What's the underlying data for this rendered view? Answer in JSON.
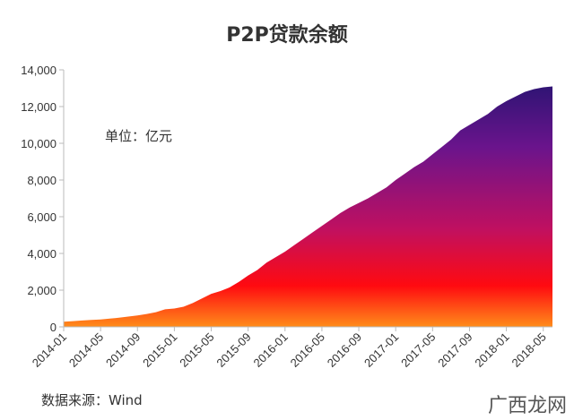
{
  "chart_data": {
    "type": "area",
    "title": "P2P贷款余额",
    "unit_label": "单位：亿元",
    "ylim": [
      0,
      14000
    ],
    "y_ticks": [
      "0",
      "2,000",
      "4,000",
      "6,000",
      "8,000",
      "10,000",
      "12,000",
      "14,000"
    ],
    "x_ticks": [
      "2014-01",
      "2014-05",
      "2014-09",
      "2015-01",
      "2015-05",
      "2015-09",
      "2016-01",
      "2016-05",
      "2016-09",
      "2017-01",
      "2017-05",
      "2017-09",
      "2018-01",
      "2018-05"
    ],
    "x": [
      "2014-01",
      "2014-02",
      "2014-03",
      "2014-04",
      "2014-05",
      "2014-06",
      "2014-07",
      "2014-08",
      "2014-09",
      "2014-10",
      "2014-11",
      "2014-12",
      "2015-01",
      "2015-02",
      "2015-03",
      "2015-04",
      "2015-05",
      "2015-06",
      "2015-07",
      "2015-08",
      "2015-09",
      "2015-10",
      "2015-11",
      "2015-12",
      "2016-01",
      "2016-02",
      "2016-03",
      "2016-04",
      "2016-05",
      "2016-06",
      "2016-07",
      "2016-08",
      "2016-09",
      "2016-10",
      "2016-11",
      "2016-12",
      "2017-01",
      "2017-02",
      "2017-03",
      "2017-04",
      "2017-05",
      "2017-06",
      "2017-07",
      "2017-08",
      "2017-09",
      "2017-10",
      "2017-11",
      "2017-12",
      "2018-01",
      "2018-02",
      "2018-03",
      "2018-04",
      "2018-05",
      "2018-06"
    ],
    "values": [
      280,
      310,
      350,
      380,
      400,
      450,
      500,
      560,
      620,
      700,
      800,
      960,
      1000,
      1100,
      1300,
      1550,
      1800,
      1950,
      2150,
      2450,
      2800,
      3100,
      3500,
      3800,
      4100,
      4450,
      4800,
      5150,
      5500,
      5850,
      6200,
      6500,
      6750,
      7000,
      7300,
      7600,
      8000,
      8350,
      8700,
      9000,
      9400,
      9800,
      10200,
      10700,
      11000,
      11300,
      11600,
      12000,
      12300,
      12550,
      12800,
      12950,
      13050,
      13100
    ],
    "grid": false,
    "legend": "none",
    "colors": {
      "gradient_top": "#20146e",
      "gradient_mid_upper": "#6a148c",
      "gradient_mid": "#c01060",
      "gradient_mid_lower": "#ff0a10",
      "gradient_bottom": "#ff8c1a",
      "axis": "#bbbbbb"
    }
  },
  "footer": {
    "source": "数据来源：Wind",
    "site_mark": "广西龙网"
  }
}
